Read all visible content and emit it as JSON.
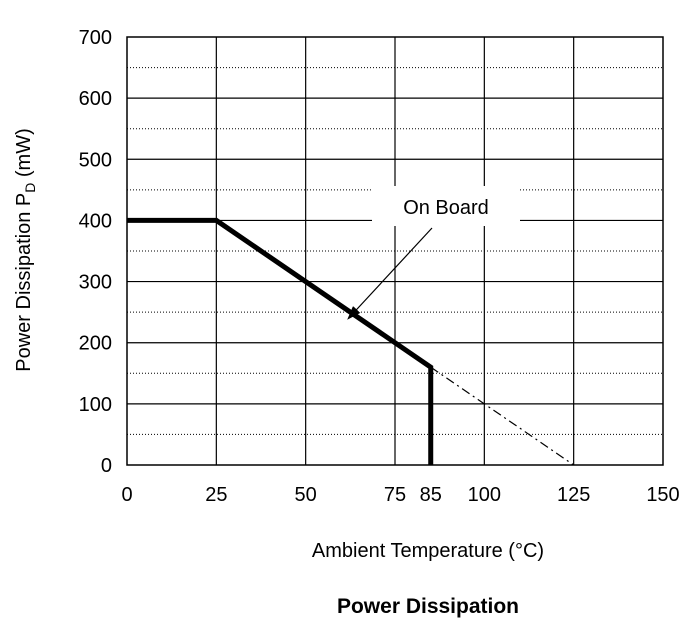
{
  "chart_data": {
    "type": "line",
    "title": "Power Dissipation",
    "xlabel": "Ambient Temperature (°C)",
    "ylabel_main": "Power Dissipation P",
    "ylabel_sub": "D",
    "ylabel_unit": " (mW)",
    "xlim": [
      0,
      150
    ],
    "ylim": [
      0,
      700
    ],
    "x_ticks": [
      0,
      25,
      50,
      75,
      85,
      100,
      125,
      150
    ],
    "y_ticks": [
      0,
      100,
      200,
      300,
      400,
      500,
      600,
      700
    ],
    "grid": {
      "vertical_solid": [
        25,
        50,
        75,
        100,
        125
      ],
      "horizontal_solid": [
        100,
        200,
        300,
        400,
        500,
        600
      ],
      "horizontal_dotted": [
        50,
        150,
        250,
        350,
        450,
        550,
        650
      ]
    },
    "series": [
      {
        "name": "On Board",
        "style": "solid-bold",
        "points": [
          [
            0,
            400
          ],
          [
            25,
            400
          ],
          [
            85,
            160
          ],
          [
            85,
            0
          ]
        ]
      },
      {
        "style": "dash-dot",
        "points": [
          [
            85,
            160
          ],
          [
            125,
            0
          ]
        ]
      }
    ],
    "annotation": {
      "text": "On Board",
      "points_to": [
        62,
        240
      ]
    }
  }
}
